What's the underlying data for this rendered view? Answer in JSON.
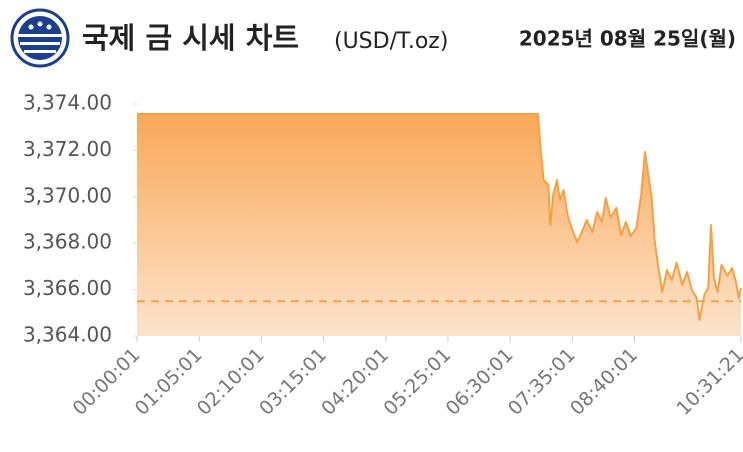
{
  "chart_data": {
    "type": "line",
    "title": "국제 금 시세 차트",
    "unit": "(USD/T.oz)",
    "date": "2025년 08월 25일(월)",
    "color": "#f5a043",
    "x": [
      "00:00:01",
      "06:59:01",
      "07:02:01",
      "07:05:01",
      "07:10:01",
      "07:12:01",
      "07:15:01",
      "07:19:01",
      "07:22:01",
      "07:26:01",
      "07:30:01",
      "07:35:01",
      "07:40:01",
      "07:45:01",
      "07:50:01",
      "07:56:01",
      "08:01:01",
      "08:06:01",
      "08:10:01",
      "08:15:01",
      "08:21:01",
      "08:26:01",
      "08:31:01",
      "08:36:01",
      "08:42:01",
      "08:47:01",
      "08:51:01",
      "08:54:01",
      "08:58:01",
      "09:01:01",
      "09:05:01",
      "09:09:01",
      "09:14:01",
      "09:19:01",
      "09:24:01",
      "09:30:01",
      "09:35:01",
      "09:40:01",
      "09:45:01",
      "09:48:01",
      "09:53:01",
      "09:57:01",
      "10:00:01",
      "10:03:01",
      "10:07:01",
      "10:11:01",
      "10:17:01",
      "10:22:01",
      "10:26:01",
      "10:29:01",
      "10:31:21"
    ],
    "values": [
      3373.57,
      3373.57,
      3372.02,
      3370.72,
      3370.51,
      3368.78,
      3370.08,
      3370.72,
      3369.86,
      3370.29,
      3369.22,
      3368.57,
      3368.05,
      3368.48,
      3369.0,
      3368.48,
      3369.34,
      3368.91,
      3369.95,
      3369.09,
      3369.52,
      3368.35,
      3368.91,
      3368.31,
      3368.66,
      3370.08,
      3371.93,
      3371.07,
      3369.95,
      3368.14,
      3366.93,
      3365.9,
      3366.84,
      3366.41,
      3367.15,
      3366.2,
      3366.76,
      3365.98,
      3365.64,
      3364.69,
      3365.77,
      3366.07,
      3368.78,
      3366.5,
      3365.9,
      3367.06,
      3366.59,
      3366.93,
      3366.33,
      3365.64,
      3366.07
    ],
    "reference_line": 3365.5,
    "xlim": [
      "00:00:01",
      "10:31:21"
    ],
    "xticks": [
      "00:00:01",
      "01:05:01",
      "02:10:01",
      "03:15:01",
      "04:20:01",
      "05:25:01",
      "06:30:01",
      "07:35:01",
      "08:40:01",
      "10:31:21"
    ],
    "ylim": [
      3364,
      3374
    ],
    "yticks": [
      {
        "value": 3364,
        "label": "3,364.00"
      },
      {
        "value": 3366,
        "label": "3,366.00"
      },
      {
        "value": 3368,
        "label": "3,368.00"
      },
      {
        "value": 3370,
        "label": "3,370.00"
      },
      {
        "value": 3372,
        "label": "3,372.00"
      },
      {
        "value": 3374,
        "label": "3,374.00"
      }
    ]
  }
}
